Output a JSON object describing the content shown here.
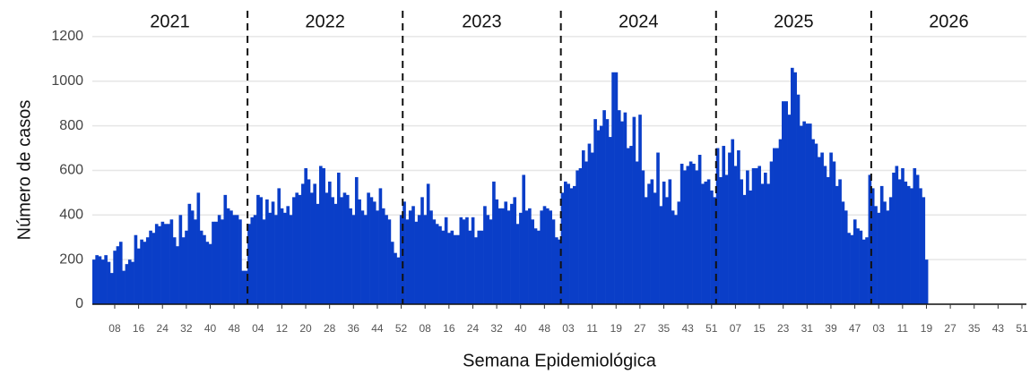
{
  "chart_data": {
    "type": "bar",
    "y_label": "Número de casos",
    "x_label": "Semana Epidemiológica",
    "year_labels": [
      "2021",
      "2022",
      "2023",
      "2024",
      "2025",
      "2026"
    ],
    "color": "#0a3ec8",
    "ylim": [
      0,
      1300
    ],
    "yticks": [
      0,
      200,
      400,
      600,
      800,
      1000,
      1200
    ],
    "grid": true,
    "categories": [
      null,
      null,
      null,
      null,
      null,
      null,
      null,
      "08",
      null,
      null,
      null,
      null,
      null,
      null,
      null,
      "16",
      null,
      null,
      null,
      null,
      null,
      null,
      null,
      "24",
      null,
      null,
      null,
      null,
      null,
      null,
      null,
      "32",
      null,
      null,
      null,
      null,
      null,
      null,
      null,
      "40",
      null,
      null,
      null,
      null,
      null,
      null,
      null,
      "48",
      null,
      null,
      null,
      null,
      null,
      null,
      null,
      "04",
      null,
      null,
      null,
      null,
      null,
      null,
      null,
      "12",
      null,
      null,
      null,
      null,
      null,
      null,
      null,
      "20",
      null,
      null,
      null,
      null,
      null,
      null,
      null,
      "28",
      null,
      null,
      null,
      null,
      null,
      null,
      null,
      "36",
      null,
      null,
      null,
      null,
      null,
      null,
      null,
      "44",
      null,
      null,
      null,
      null,
      null,
      null,
      null,
      "52",
      null,
      null,
      null,
      null,
      null,
      null,
      null,
      "08",
      null,
      null,
      null,
      null,
      null,
      null,
      null,
      "16",
      null,
      null,
      null,
      null,
      null,
      null,
      null,
      "24",
      null,
      null,
      null,
      null,
      null,
      null,
      null,
      "32",
      null,
      null,
      null,
      null,
      null,
      null,
      null,
      "40",
      null,
      null,
      null,
      null,
      null,
      null,
      null,
      "48",
      null,
      null,
      null,
      null,
      null,
      null,
      null,
      "03",
      null,
      null,
      null,
      null,
      null,
      null,
      null,
      "11",
      null,
      null,
      null,
      null,
      null,
      null,
      null,
      "19",
      null,
      null,
      null,
      null,
      null,
      null,
      null,
      "27",
      null,
      null,
      null,
      null,
      null,
      null,
      null,
      "35",
      null,
      null,
      null,
      null,
      null,
      null,
      null,
      "43",
      null,
      null,
      null,
      null,
      null,
      null,
      null,
      "51",
      null,
      null,
      null,
      null,
      null,
      null,
      null,
      "07",
      null,
      null,
      null,
      null,
      null,
      null,
      null,
      "15",
      null,
      null,
      null,
      null,
      null,
      null,
      null,
      "23",
      null,
      null,
      null,
      null,
      null,
      null,
      null,
      "31",
      null,
      null,
      null,
      null,
      null,
      null,
      null,
      "39",
      null,
      null,
      null,
      null,
      null,
      null,
      null,
      "47",
      null,
      null,
      null,
      null,
      null,
      null,
      null,
      "03",
      null,
      null,
      null,
      null,
      null,
      null,
      null,
      "11",
      null,
      null,
      null,
      null,
      null,
      null,
      null,
      "19",
      null,
      null,
      null,
      null,
      null,
      null,
      null,
      "27",
      null,
      null,
      null,
      null,
      null,
      null,
      null,
      "35",
      null,
      null,
      null,
      null,
      null,
      null,
      null,
      "43",
      null,
      null,
      null,
      null,
      null,
      null,
      null,
      "51",
      null
    ],
    "values": [
      200,
      220,
      215,
      200,
      220,
      190,
      140,
      240,
      260,
      280,
      150,
      180,
      200,
      190,
      310,
      250,
      290,
      280,
      300,
      330,
      320,
      360,
      350,
      370,
      360,
      360,
      380,
      300,
      260,
      400,
      300,
      330,
      450,
      420,
      380,
      500,
      330,
      310,
      280,
      270,
      370,
      370,
      400,
      380,
      490,
      430,
      420,
      400,
      400,
      380,
      150,
      150,
      360,
      390,
      400,
      490,
      480,
      380,
      470,
      410,
      460,
      400,
      520,
      430,
      410,
      440,
      400,
      480,
      500,
      490,
      540,
      610,
      560,
      500,
      540,
      450,
      620,
      610,
      500,
      550,
      480,
      450,
      590,
      480,
      500,
      490,
      430,
      400,
      570,
      470,
      420,
      400,
      500,
      480,
      460,
      420,
      520,
      430,
      400,
      380,
      280,
      230,
      210,
      400,
      460,
      380,
      420,
      440,
      370,
      400,
      480,
      400,
      540,
      420,
      380,
      360,
      350,
      330,
      390,
      320,
      330,
      310,
      310,
      390,
      380,
      390,
      330,
      390,
      300,
      330,
      330,
      440,
      400,
      380,
      550,
      470,
      430,
      430,
      460,
      420,
      450,
      480,
      360,
      410,
      580,
      420,
      430,
      380,
      340,
      330,
      420,
      440,
      430,
      420,
      380,
      300,
      290,
      500,
      550,
      540,
      520,
      530,
      600,
      610,
      690,
      640,
      720,
      680,
      830,
      780,
      800,
      870,
      830,
      750,
      1040,
      1040,
      870,
      820,
      860,
      700,
      710,
      840,
      640,
      850,
      600,
      480,
      540,
      560,
      500,
      680,
      440,
      550,
      480,
      560,
      420,
      400,
      460,
      630,
      600,
      620,
      640,
      630,
      600,
      670,
      540,
      550,
      560,
      510,
      480,
      700,
      570,
      710,
      580,
      680,
      740,
      620,
      690,
      560,
      490,
      600,
      510,
      610,
      610,
      620,
      540,
      590,
      540,
      640,
      700,
      700,
      740,
      910,
      910,
      850,
      1060,
      1040,
      940,
      800,
      820,
      810,
      810,
      740,
      720,
      660,
      680,
      620,
      570,
      680,
      640,
      530,
      560,
      460,
      420,
      320,
      310,
      380,
      340,
      330,
      290,
      300,
      580,
      520,
      440,
      410,
      530,
      460,
      420,
      480,
      590,
      620,
      560,
      610,
      550,
      530,
      520,
      610,
      580,
      520,
      480,
      200,
      null,
      null,
      null,
      null,
      null,
      null,
      null,
      null,
      null,
      null,
      null,
      null,
      null,
      null,
      null,
      null,
      null,
      null,
      null,
      null,
      null,
      null,
      null,
      null,
      null,
      null,
      null,
      null,
      null,
      null,
      null,
      null,
      null
    ]
  }
}
